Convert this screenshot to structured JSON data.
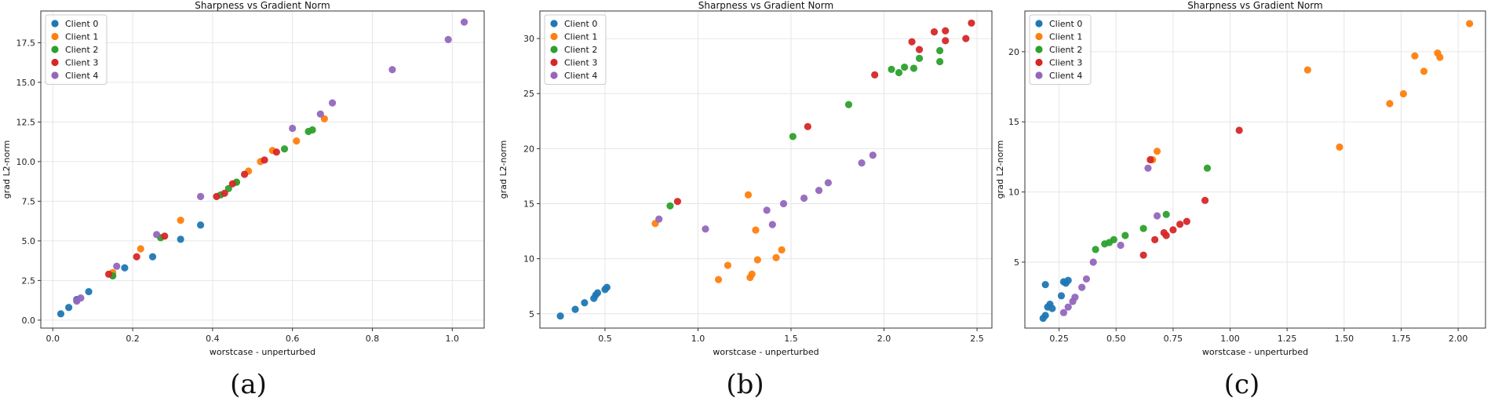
{
  "figure": {
    "captions": [
      "(a)",
      "(b)",
      "(c)"
    ]
  },
  "series_colors": [
    "#1f77b4",
    "#ff7f0e",
    "#2ca02c",
    "#d62728",
    "#9467bd"
  ],
  "chart_data": [
    {
      "type": "scatter",
      "title": "Sharpness vs Gradient Norm",
      "xlabel": "worstcase - unperturbed",
      "ylabel": "grad L2-norm",
      "xlim": [
        -0.03,
        1.08
      ],
      "ylim": [
        -0.5,
        19.5
      ],
      "xticks": [
        0.0,
        0.2,
        0.4,
        0.6,
        0.8,
        1.0
      ],
      "xtick_labels": [
        "0.0",
        "0.2",
        "0.4",
        "0.6",
        "0.8",
        "1.0"
      ],
      "yticks": [
        0.0,
        2.5,
        5.0,
        7.5,
        10.0,
        12.5,
        15.0,
        17.5
      ],
      "ytick_labels": [
        "0.0",
        "2.5",
        "5.0",
        "7.5",
        "10.0",
        "12.5",
        "15.0",
        "17.5"
      ],
      "grid": true,
      "legend_position": "upper-left",
      "series": [
        {
          "name": "Client 0",
          "points": [
            [
              0.02,
              0.4
            ],
            [
              0.04,
              0.8
            ],
            [
              0.06,
              1.3
            ],
            [
              0.09,
              1.8
            ],
            [
              0.15,
              2.8
            ],
            [
              0.18,
              3.3
            ],
            [
              0.25,
              4.0
            ],
            [
              0.32,
              5.1
            ],
            [
              0.37,
              6.0
            ]
          ]
        },
        {
          "name": "Client 1",
          "points": [
            [
              0.15,
              3.0
            ],
            [
              0.22,
              4.5
            ],
            [
              0.32,
              6.3
            ],
            [
              0.46,
              8.7
            ],
            [
              0.49,
              9.4
            ],
            [
              0.52,
              10.0
            ],
            [
              0.55,
              10.7
            ],
            [
              0.61,
              11.3
            ],
            [
              0.68,
              12.7
            ]
          ]
        },
        {
          "name": "Client 2",
          "points": [
            [
              0.15,
              2.8
            ],
            [
              0.27,
              5.2
            ],
            [
              0.42,
              7.9
            ],
            [
              0.44,
              8.3
            ],
            [
              0.46,
              8.7
            ],
            [
              0.58,
              10.8
            ],
            [
              0.64,
              11.9
            ],
            [
              0.65,
              12.0
            ]
          ]
        },
        {
          "name": "Client 3",
          "points": [
            [
              0.14,
              2.9
            ],
            [
              0.21,
              4.0
            ],
            [
              0.28,
              5.3
            ],
            [
              0.41,
              7.8
            ],
            [
              0.43,
              8.0
            ],
            [
              0.45,
              8.6
            ],
            [
              0.48,
              9.2
            ],
            [
              0.53,
              10.1
            ],
            [
              0.56,
              10.6
            ]
          ]
        },
        {
          "name": "Client 4",
          "points": [
            [
              0.06,
              1.2
            ],
            [
              0.07,
              1.4
            ],
            [
              0.16,
              3.4
            ],
            [
              0.26,
              5.4
            ],
            [
              0.37,
              7.8
            ],
            [
              0.6,
              12.1
            ],
            [
              0.67,
              13.0
            ],
            [
              0.7,
              13.7
            ],
            [
              0.85,
              15.8
            ],
            [
              0.99,
              17.7
            ],
            [
              1.03,
              18.8
            ]
          ]
        }
      ]
    },
    {
      "type": "scatter",
      "title": "Sharpness vs Gradient Norm",
      "xlabel": "worstcase - unperturbed",
      "ylabel": "grad L2-norm",
      "xlim": [
        0.15,
        2.58
      ],
      "ylim": [
        3.7,
        32.5
      ],
      "xticks": [
        0.5,
        1.0,
        1.5,
        2.0,
        2.5
      ],
      "xtick_labels": [
        "0.5",
        "1.0",
        "1.5",
        "2.0",
        "2.5"
      ],
      "yticks": [
        5,
        10,
        15,
        20,
        25,
        30
      ],
      "ytick_labels": [
        "5",
        "10",
        "15",
        "20",
        "25",
        "30"
      ],
      "grid": true,
      "legend_position": "upper-left",
      "series": [
        {
          "name": "Client 0",
          "points": [
            [
              0.26,
              4.8
            ],
            [
              0.34,
              5.4
            ],
            [
              0.39,
              6.0
            ],
            [
              0.44,
              6.4
            ],
            [
              0.45,
              6.7
            ],
            [
              0.46,
              6.9
            ],
            [
              0.5,
              7.2
            ],
            [
              0.51,
              7.4
            ]
          ]
        },
        {
          "name": "Client 1",
          "points": [
            [
              0.77,
              13.2
            ],
            [
              1.11,
              8.1
            ],
            [
              1.16,
              9.4
            ],
            [
              1.27,
              15.8
            ],
            [
              1.28,
              8.3
            ],
            [
              1.29,
              8.6
            ],
            [
              1.31,
              12.6
            ],
            [
              1.32,
              9.9
            ],
            [
              1.42,
              10.1
            ],
            [
              1.45,
              10.8
            ]
          ]
        },
        {
          "name": "Client 2",
          "points": [
            [
              0.85,
              14.8
            ],
            [
              1.51,
              21.1
            ],
            [
              1.81,
              24.0
            ],
            [
              2.04,
              27.2
            ],
            [
              2.08,
              26.9
            ],
            [
              2.11,
              27.4
            ],
            [
              2.16,
              27.3
            ],
            [
              2.19,
              28.2
            ],
            [
              2.3,
              28.9
            ],
            [
              2.3,
              27.9
            ]
          ]
        },
        {
          "name": "Client 3",
          "points": [
            [
              0.89,
              15.2
            ],
            [
              1.59,
              22.0
            ],
            [
              1.95,
              26.7
            ],
            [
              2.15,
              29.7
            ],
            [
              2.19,
              29.0
            ],
            [
              2.27,
              30.6
            ],
            [
              2.33,
              29.8
            ],
            [
              2.33,
              30.7
            ],
            [
              2.44,
              30.0
            ],
            [
              2.47,
              31.4
            ]
          ]
        },
        {
          "name": "Client 4",
          "points": [
            [
              0.79,
              13.6
            ],
            [
              1.04,
              12.7
            ],
            [
              1.37,
              14.4
            ],
            [
              1.4,
              13.1
            ],
            [
              1.46,
              15.0
            ],
            [
              1.57,
              15.5
            ],
            [
              1.65,
              16.2
            ],
            [
              1.7,
              16.9
            ],
            [
              1.88,
              18.7
            ],
            [
              1.94,
              19.4
            ]
          ]
        }
      ]
    },
    {
      "type": "scatter",
      "title": "Sharpness vs Gradient Norm",
      "xlabel": "worstcase - unperturbed",
      "ylabel": "grad L2-norm",
      "xlim": [
        0.1,
        2.12
      ],
      "ylim": [
        0.3,
        22.9
      ],
      "xticks": [
        0.25,
        0.5,
        0.75,
        1.0,
        1.25,
        1.5,
        1.75,
        2.0
      ],
      "xtick_labels": [
        "0.25",
        "0.50",
        "0.75",
        "1.00",
        "1.25",
        "1.50",
        "1.75",
        "2.00"
      ],
      "yticks": [
        5,
        10,
        15,
        20
      ],
      "ytick_labels": [
        "5",
        "10",
        "15",
        "20"
      ],
      "grid": true,
      "legend_position": "upper-left",
      "series": [
        {
          "name": "Client 0",
          "points": [
            [
              0.18,
              1.0
            ],
            [
              0.19,
              1.2
            ],
            [
              0.2,
              1.8
            ],
            [
              0.21,
              2.0
            ],
            [
              0.22,
              1.7
            ],
            [
              0.19,
              3.4
            ],
            [
              0.27,
              3.6
            ],
            [
              0.28,
              3.5
            ],
            [
              0.29,
              3.7
            ],
            [
              0.26,
              2.6
            ]
          ]
        },
        {
          "name": "Client 1",
          "points": [
            [
              0.66,
              12.3
            ],
            [
              0.68,
              12.9
            ],
            [
              1.34,
              18.7
            ],
            [
              1.48,
              13.2
            ],
            [
              1.7,
              16.3
            ],
            [
              1.76,
              17.0
            ],
            [
              1.81,
              19.7
            ],
            [
              1.85,
              18.6
            ],
            [
              1.91,
              19.9
            ],
            [
              1.92,
              19.6
            ],
            [
              2.05,
              22.0
            ]
          ]
        },
        {
          "name": "Client 2",
          "points": [
            [
              0.41,
              5.9
            ],
            [
              0.45,
              6.3
            ],
            [
              0.47,
              6.4
            ],
            [
              0.49,
              6.6
            ],
            [
              0.54,
              6.9
            ],
            [
              0.62,
              7.4
            ],
            [
              0.72,
              8.4
            ],
            [
              0.9,
              11.7
            ]
          ]
        },
        {
          "name": "Client 3",
          "points": [
            [
              0.62,
              5.5
            ],
            [
              0.67,
              6.6
            ],
            [
              0.71,
              7.1
            ],
            [
              0.72,
              6.9
            ],
            [
              0.75,
              7.3
            ],
            [
              0.78,
              7.7
            ],
            [
              0.81,
              7.9
            ],
            [
              0.89,
              9.4
            ],
            [
              1.04,
              14.4
            ],
            [
              0.65,
              12.3
            ]
          ]
        },
        {
          "name": "Client 4",
          "points": [
            [
              0.27,
              1.4
            ],
            [
              0.29,
              1.8
            ],
            [
              0.31,
              2.2
            ],
            [
              0.32,
              2.5
            ],
            [
              0.35,
              3.2
            ],
            [
              0.37,
              3.8
            ],
            [
              0.4,
              5.0
            ],
            [
              0.52,
              6.2
            ],
            [
              0.64,
              11.7
            ],
            [
              0.68,
              8.3
            ]
          ]
        }
      ]
    }
  ]
}
